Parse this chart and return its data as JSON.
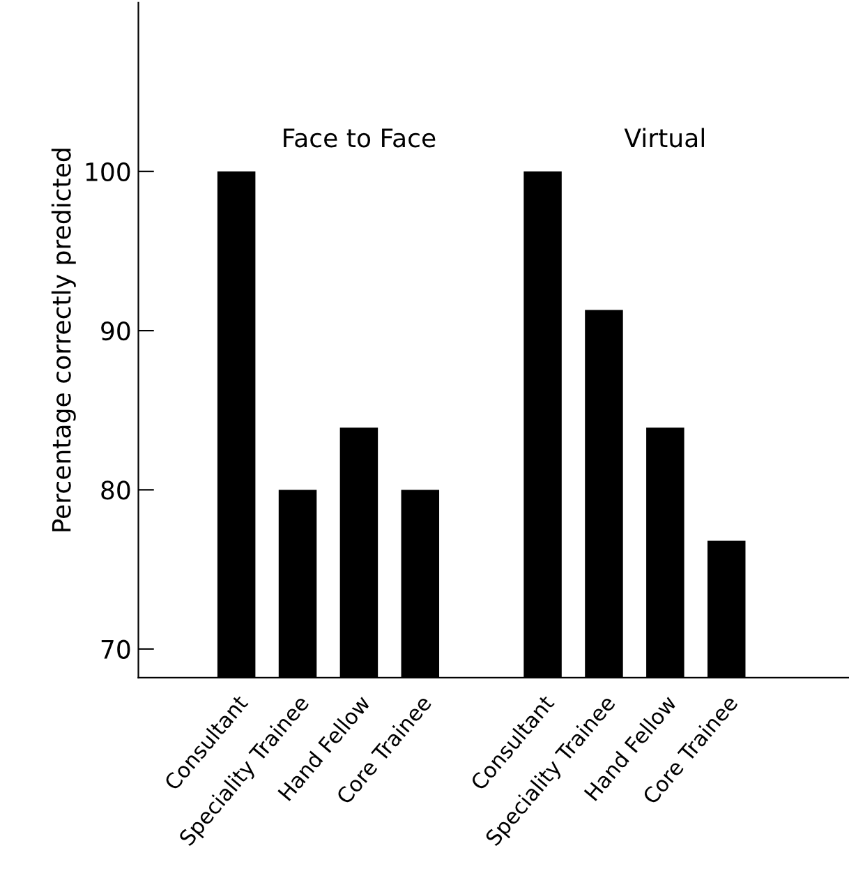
{
  "chart_data": {
    "type": "bar",
    "ylabel": "Percentage correctly predicted",
    "categories": [
      "Consultant",
      "Speciality Trainee",
      "Hand Fellow",
      "Core Trainee",
      null,
      "Consultant",
      "Speciality Trainee",
      "Hand Fellow",
      "Core Trainee"
    ],
    "values": [
      100,
      80,
      83.9,
      80,
      null,
      100,
      91.3,
      83.9,
      76.8
    ],
    "color": "#000000",
    "ylim": [
      68.2,
      110.6
    ],
    "yticks": [
      70,
      80,
      90,
      100
    ],
    "grid": false,
    "legend": false,
    "annotations": [
      "Face to Face",
      "Virtual"
    ]
  }
}
